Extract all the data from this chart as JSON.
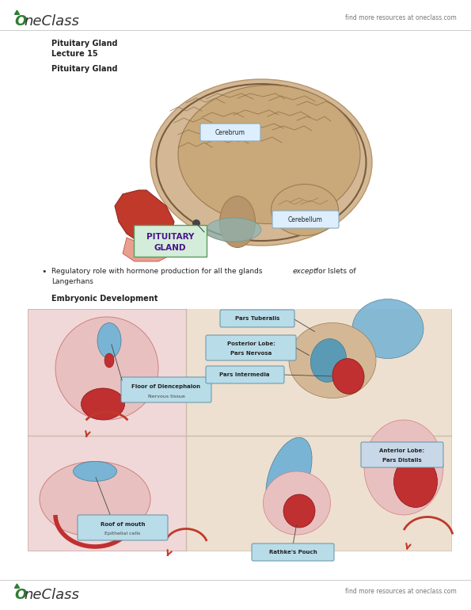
{
  "background_color": "#ffffff",
  "page_width": 5.95,
  "page_height": 7.7,
  "dpi": 100,
  "header_logo_color": "#2e7d32",
  "header_right_text": "find more resources at oneclass.com",
  "header_text_color": "#777777",
  "footer_logo_color": "#2e7d32",
  "footer_right_text": "find more resources at oneclass.com",
  "footer_text_color": "#777777",
  "title1": "Pituitary Gland",
  "title2": "Lecture 15",
  "title3": "Pituitary Gland",
  "section2_title": "Embryonic Development",
  "label_cerebrum": "Cerebrum",
  "label_cerebellum": "Cerebellum",
  "label_pituitary_line1": "PITUITARY",
  "label_pituitary_line2": "GLAND",
  "pituitary_box_color": "#d4edda",
  "pituitary_text_color": "#4a148c",
  "label_box_color": "#ddeeff",
  "label_box_edge": "#88aabb",
  "divider_color": "#cccccc",
  "title_fontsize": 7,
  "body_fontsize": 6.5,
  "small_fontsize": 5.5,
  "tiny_fontsize": 5.0,
  "skull_color": "#d4b896",
  "skull_edge": "#b8956a",
  "brain_color": "#c9a87a",
  "brain_edge": "#9b7b52",
  "face_color": "#c0392b",
  "jaw_color": "#e8a090",
  "stem_color": "#b8956a",
  "teal_color": "#8ab4b4",
  "pink_tissue": "#e8b4b8",
  "pink_dark": "#d4848a",
  "blue_tissue": "#7ab4d4",
  "red_tissue": "#c03030",
  "tan_tissue": "#d4b896",
  "arrow_color": "#c0392b",
  "dienc_box_color": "#b8dce8",
  "dienc_box_edge": "#6090a8",
  "ant_box_color": "#c8d8e8",
  "ant_box_edge": "#6090a8"
}
